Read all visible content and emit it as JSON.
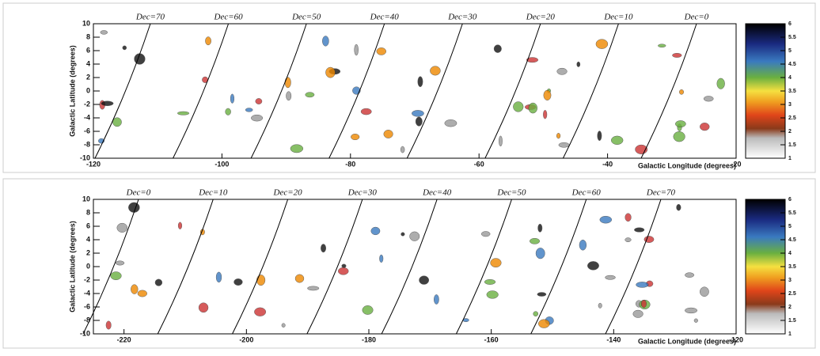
{
  "chart_data": [
    {
      "type": "contour",
      "y_label": "Galactic Latitude (degrees)",
      "x_label": "Galactic Longitude (degrees)",
      "xlim": [
        -120,
        -20
      ],
      "xticks": [
        -120,
        -100,
        -80,
        -60,
        -40,
        -20
      ],
      "ylim": [
        -10,
        10
      ],
      "yticks": [
        10,
        8,
        6,
        4,
        2,
        0,
        -2,
        -4,
        -6,
        -8,
        -10
      ],
      "annotations": [
        "Dec=70",
        "Dec=60",
        "Dec=50",
        "Dec=40",
        "Dec=30",
        "Dec=20",
        "Dec=10",
        "Dec=0"
      ],
      "clim": [
        1,
        6
      ],
      "cticks": [
        6,
        5.5,
        5,
        4.5,
        4,
        3.5,
        3,
        2.5,
        2,
        1.5,
        1
      ]
    },
    {
      "type": "contour",
      "y_label": "Galactic Latitude (degrees)",
      "x_label": "Galactic Longitude (degrees)",
      "xlim": [
        -225,
        -120
      ],
      "xticks": [
        -220,
        -200,
        -180,
        -160,
        -140,
        -120
      ],
      "ylim": [
        -10,
        10
      ],
      "yticks": [
        10,
        8,
        6,
        4,
        2,
        0,
        -2,
        -4,
        -6,
        -8,
        -10
      ],
      "annotations": [
        "Dec=0",
        "Dec=10",
        "Dec=20",
        "Dec=30",
        "Dec=40",
        "Dec=50",
        "Dec=60",
        "Dec=70"
      ],
      "clim": [
        1,
        6
      ],
      "cticks": [
        6,
        5.5,
        5,
        4.5,
        4,
        3.5,
        3,
        2.5,
        2,
        1.5,
        1
      ]
    }
  ]
}
